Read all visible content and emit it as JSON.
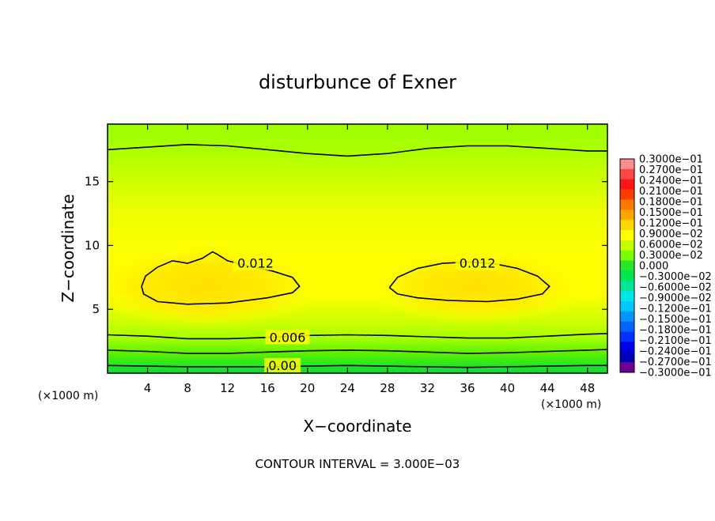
{
  "chart_data": {
    "type": "contour",
    "title": "disturbunce of Exner",
    "xlabel": "X−coordinate",
    "ylabel": "Z−coordinate",
    "x_unit": "(×1000 m)",
    "x_unit_right": "(×1000 m)",
    "xlim": [
      0,
      50
    ],
    "ylim": [
      0,
      19.5
    ],
    "x_ticks": [
      4,
      8,
      12,
      16,
      20,
      24,
      28,
      32,
      36,
      40,
      44,
      48
    ],
    "y_ticks": [
      5,
      10,
      15
    ],
    "contour_interval_text": "CONTOUR INTERVAL = 3.000E−03",
    "contour_interval": 0.003,
    "contour_labels": [
      {
        "text": "0.012",
        "x": 14.8,
        "y": 8.5
      },
      {
        "text": "0.012",
        "x": 37.0,
        "y": 8.5
      },
      {
        "text": "0.006",
        "x": 18.0,
        "y": 2.7
      },
      {
        "text": "0.00",
        "x": 17.5,
        "y": 0.5
      }
    ],
    "contour_lines": [
      {
        "level": 0.012,
        "points": [
          [
            3.4,
            6.8
          ],
          [
            3.8,
            7.6
          ],
          [
            5,
            8.3
          ],
          [
            6.5,
            8.8
          ],
          [
            8,
            8.6
          ],
          [
            9.5,
            9.0
          ],
          [
            10.5,
            9.5
          ],
          [
            11,
            9.3
          ],
          [
            12,
            8.8
          ],
          [
            14,
            8.4
          ],
          [
            16.5,
            8.0
          ],
          [
            18.5,
            7.5
          ],
          [
            19.2,
            6.8
          ],
          [
            18.5,
            6.3
          ],
          [
            16,
            5.9
          ],
          [
            12,
            5.5
          ],
          [
            8,
            5.4
          ],
          [
            5,
            5.6
          ],
          [
            3.6,
            6.2
          ],
          [
            3.4,
            6.8
          ]
        ]
      },
      {
        "level": 0.012,
        "points": [
          [
            28.2,
            6.7
          ],
          [
            29,
            7.5
          ],
          [
            31,
            8.2
          ],
          [
            33.5,
            8.6
          ],
          [
            36,
            8.7
          ],
          [
            38.5,
            8.6
          ],
          [
            41,
            8.2
          ],
          [
            43,
            7.6
          ],
          [
            44.2,
            6.8
          ],
          [
            43.5,
            6.2
          ],
          [
            41,
            5.8
          ],
          [
            38,
            5.6
          ],
          [
            34,
            5.7
          ],
          [
            31,
            5.9
          ],
          [
            29,
            6.2
          ],
          [
            28.2,
            6.7
          ]
        ]
      },
      {
        "level": 0.0,
        "points": [
          [
            0,
            17.5
          ],
          [
            4,
            17.7
          ],
          [
            8,
            17.9
          ],
          [
            12,
            17.8
          ],
          [
            16,
            17.5
          ],
          [
            20,
            17.2
          ],
          [
            24,
            17.0
          ],
          [
            28,
            17.2
          ],
          [
            32,
            17.6
          ],
          [
            36,
            17.8
          ],
          [
            40,
            17.8
          ],
          [
            44,
            17.6
          ],
          [
            48,
            17.4
          ],
          [
            50,
            17.4
          ]
        ]
      },
      {
        "level": 0.006,
        "points": [
          [
            0,
            3.0
          ],
          [
            4,
            2.9
          ],
          [
            8,
            2.7
          ],
          [
            12,
            2.7
          ],
          [
            16,
            2.8
          ],
          [
            20,
            2.95
          ],
          [
            24,
            3.0
          ],
          [
            28,
            2.95
          ],
          [
            32,
            2.85
          ],
          [
            36,
            2.75
          ],
          [
            40,
            2.75
          ],
          [
            44,
            2.9
          ],
          [
            48,
            3.05
          ],
          [
            50,
            3.1
          ]
        ]
      },
      {
        "level": 0.003,
        "points": [
          [
            0,
            1.8
          ],
          [
            4,
            1.7
          ],
          [
            8,
            1.55
          ],
          [
            12,
            1.55
          ],
          [
            16,
            1.65
          ],
          [
            20,
            1.75
          ],
          [
            24,
            1.8
          ],
          [
            28,
            1.75
          ],
          [
            32,
            1.65
          ],
          [
            36,
            1.55
          ],
          [
            40,
            1.6
          ],
          [
            44,
            1.7
          ],
          [
            48,
            1.8
          ],
          [
            50,
            1.85
          ]
        ]
      },
      {
        "level": 0.0,
        "points": [
          [
            0,
            0.6
          ],
          [
            4,
            0.55
          ],
          [
            8,
            0.5
          ],
          [
            12,
            0.5
          ],
          [
            16,
            0.5
          ],
          [
            20,
            0.55
          ],
          [
            24,
            0.6
          ],
          [
            28,
            0.55
          ],
          [
            32,
            0.5
          ],
          [
            36,
            0.45
          ],
          [
            40,
            0.5
          ],
          [
            44,
            0.55
          ],
          [
            48,
            0.6
          ],
          [
            50,
            0.6
          ]
        ]
      }
    ],
    "colorbar_labels": [
      "0.3000e−01",
      "0.2700e−01",
      "0.2400e−01",
      "0.2100e−01",
      "0.1800e−01",
      "0.1500e−01",
      "0.1200e−01",
      "0.9000e−02",
      "0.6000e−02",
      "0.3000e−02",
      "0.000",
      "−0.3000e−02",
      "−0.6000e−02",
      "−0.9000e−02",
      "−0.1200e−01",
      "−0.1500e−01",
      "−0.1800e−01",
      "−0.2100e−01",
      "−0.2400e−01",
      "−0.2700e−01",
      "−0.3000e−01"
    ],
    "colorbar_colors": [
      "#ff8c8c",
      "#ff4646",
      "#ff1414",
      "#ff3c00",
      "#ff7800",
      "#ffa500",
      "#ffd700",
      "#ffff00",
      "#c8ff00",
      "#78ff00",
      "#28e628",
      "#00e650",
      "#00e696",
      "#00e6e6",
      "#00c8ff",
      "#0096ff",
      "#0064ff",
      "#0032ff",
      "#0000e6",
      "#0000b4",
      "#6e0096"
    ]
  }
}
